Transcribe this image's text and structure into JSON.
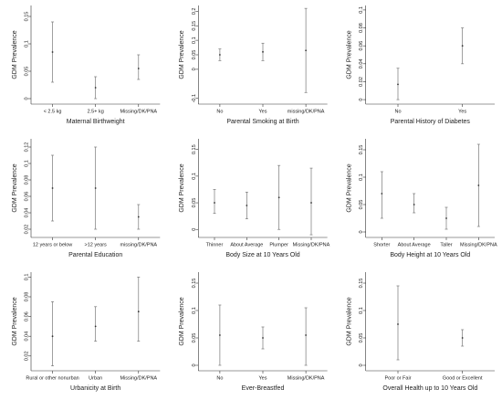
{
  "chart_data": [
    {
      "type": "errorbar",
      "ylabel": "GDM Prevalence",
      "xlabel": "Maternal Birthweight",
      "categories": [
        "< 2.5 kg",
        "2.5+ kg",
        "Missing/DK/PNA"
      ],
      "values": [
        0.085,
        0.02,
        0.055
      ],
      "lower": [
        0.03,
        0,
        0.035
      ],
      "upper": [
        0.14,
        0.04,
        0.08
      ],
      "ylim": [
        -0.01,
        0.17
      ],
      "yticks": [
        0,
        0.05,
        0.1,
        0.15
      ],
      "color": "#777777"
    },
    {
      "type": "errorbar",
      "ylabel": "GDM Prevalence",
      "xlabel": "Parental Smoking at Birth",
      "categories": [
        "No",
        "Yes",
        "missing/DK/PNA"
      ],
      "values": [
        0.05,
        0.06,
        0.065
      ],
      "lower": [
        0.03,
        0.03,
        -0.08
      ],
      "upper": [
        0.07,
        0.09,
        0.21
      ],
      "ylim": [
        -0.12,
        0.22
      ],
      "yticks": [
        -0.1,
        0,
        0.05,
        0.1,
        0.15,
        0.2
      ],
      "color": "#777777"
    },
    {
      "type": "errorbar",
      "ylabel": "GDM Prevalence",
      "xlabel": "Parental History of Diabetes",
      "categories": [
        "No",
        "Yes"
      ],
      "values": [
        0.017,
        0.06
      ],
      "lower": [
        0,
        0.04
      ],
      "upper": [
        0.035,
        0.08
      ],
      "ylim": [
        -0.005,
        0.105
      ],
      "yticks": [
        0,
        0.02,
        0.04,
        0.06,
        0.08,
        0.1
      ],
      "color": "#777777"
    },
    {
      "type": "errorbar",
      "ylabel": "GDM Prevalence",
      "xlabel": "Parental Education",
      "categories": [
        "12 years or below",
        ">12 years",
        "missing/DK/PNA"
      ],
      "values": [
        0.07,
        0.07,
        0.035
      ],
      "lower": [
        0.03,
        0.02,
        0.02
      ],
      "upper": [
        0.11,
        0.12,
        0.05
      ],
      "ylim": [
        0.01,
        0.13
      ],
      "yticks": [
        0.02,
        0.04,
        0.06,
        0.08,
        0.1,
        0.12
      ],
      "color": "#777777"
    },
    {
      "type": "errorbar",
      "ylabel": "GDM Prevalence",
      "xlabel": "Body Size at 10 Years Old",
      "categories": [
        "Thinner",
        "About Average",
        "Plumper",
        "Missing/DK/PNA"
      ],
      "values": [
        0.05,
        0.045,
        0.06,
        0.05
      ],
      "lower": [
        0.03,
        0.02,
        0,
        -0.01
      ],
      "upper": [
        0.075,
        0.07,
        0.12,
        0.115
      ],
      "ylim": [
        -0.015,
        0.17
      ],
      "yticks": [
        0,
        0.05,
        0.1,
        0.15
      ],
      "color": "#777777"
    },
    {
      "type": "errorbar",
      "ylabel": "GDM Prevalence",
      "xlabel": "Body Height at 10 Years Old",
      "categories": [
        "Shorter",
        "About Average",
        "Taller",
        "Missing/DK/PNA"
      ],
      "values": [
        0.07,
        0.05,
        0.025,
        0.085
      ],
      "lower": [
        0.025,
        0.035,
        0.005,
        0.01
      ],
      "upper": [
        0.11,
        0.07,
        0.045,
        0.16
      ],
      "ylim": [
        -0.01,
        0.17
      ],
      "yticks": [
        0,
        0.05,
        0.1,
        0.15
      ],
      "color": "#777777"
    },
    {
      "type": "errorbar",
      "ylabel": "GDM Prevalence",
      "xlabel": "Urbanicity at Birth",
      "categories": [
        "Rural or other nonurban",
        "Urban",
        "Missing/DK/PNA"
      ],
      "values": [
        0.04,
        0.05,
        0.065
      ],
      "lower": [
        0.01,
        0.035,
        0.035
      ],
      "upper": [
        0.075,
        0.07,
        0.1
      ],
      "ylim": [
        0.005,
        0.105
      ],
      "yticks": [
        0.02,
        0.04,
        0.06,
        0.08,
        0.1
      ],
      "color": "#777777"
    },
    {
      "type": "errorbar",
      "ylabel": "GDM Prevalence",
      "xlabel": "Ever-Breastfed",
      "categories": [
        "No",
        "Yes",
        "Missing/DK/PNA"
      ],
      "values": [
        0.055,
        0.05,
        0.055
      ],
      "lower": [
        0,
        0.03,
        0
      ],
      "upper": [
        0.11,
        0.07,
        0.105
      ],
      "ylim": [
        -0.01,
        0.17
      ],
      "yticks": [
        0,
        0.05,
        0.1,
        0.15
      ],
      "color": "#777777"
    },
    {
      "type": "errorbar",
      "ylabel": "GDM Prevalence",
      "xlabel": "Overall Health up to 10 Years Old",
      "categories": [
        "Poor or Fair",
        "Good or Excellent"
      ],
      "values": [
        0.075,
        0.05
      ],
      "lower": [
        0.01,
        0.035
      ],
      "upper": [
        0.145,
        0.065
      ],
      "ylim": [
        -0.01,
        0.17
      ],
      "yticks": [
        0,
        0.05,
        0.1,
        0.15
      ],
      "color": "#777777"
    }
  ]
}
